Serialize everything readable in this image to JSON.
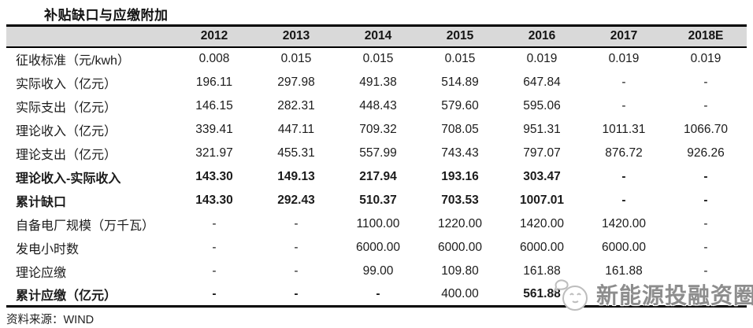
{
  "page": {
    "title": "补贴缺口与应缴附加",
    "source_note": "资料来源：WIND",
    "watermark": {
      "text": "新能源投融资圈",
      "icon": "face-with-speech-bubble-logo"
    }
  },
  "colors": {
    "header_bg": "#d9d9d9",
    "text": "#1b1b1b",
    "border": "#000000",
    "watermark_text": "#8d8d8d",
    "watermark_icon": "#bdbdbd"
  },
  "chart_data": {
    "type": "table",
    "title": "补贴缺口与应缴附加",
    "source": "WIND",
    "columns": [
      "2012",
      "2013",
      "2014",
      "2015",
      "2016",
      "2017",
      "2018E"
    ],
    "rows": [
      {
        "label": "征收标准（元/kwh）",
        "bold": false,
        "values": [
          "0.008",
          "0.015",
          "0.015",
          "0.015",
          "0.019",
          "0.019",
          "0.019"
        ]
      },
      {
        "label": "实际收入（亿元）",
        "bold": false,
        "values": [
          "196.11",
          "297.98",
          "491.38",
          "514.89",
          "647.84",
          "-",
          "-"
        ]
      },
      {
        "label": "实际支出（亿元）",
        "bold": false,
        "values": [
          "146.15",
          "282.31",
          "448.43",
          "579.60",
          "595.06",
          "-",
          "-"
        ]
      },
      {
        "label": "理论收入（亿元）",
        "bold": false,
        "values": [
          "339.41",
          "447.11",
          "709.32",
          "708.05",
          "951.31",
          "1011.31",
          "1066.70"
        ]
      },
      {
        "label": "理论支出（亿元）",
        "bold": false,
        "values": [
          "321.97",
          "455.31",
          "557.99",
          "743.43",
          "797.07",
          "876.72",
          "926.26"
        ]
      },
      {
        "label": "理论收入-实际收入",
        "bold": true,
        "values": [
          "143.30",
          "149.13",
          "217.94",
          "193.16",
          "303.47",
          "-",
          "-"
        ]
      },
      {
        "label": "累计缺口",
        "bold": true,
        "values": [
          "143.30",
          "292.43",
          "510.37",
          "703.53",
          "1007.01",
          "-",
          "-"
        ]
      },
      {
        "label": "自备电厂规模（万千瓦）",
        "bold": false,
        "values": [
          "-",
          "-",
          "1100.00",
          "1220.00",
          "1420.00",
          "1420.00",
          "-"
        ]
      },
      {
        "label": "发电小时数",
        "bold": false,
        "values": [
          "-",
          "-",
          "6000.00",
          "6000.00",
          "6000.00",
          "6000.00",
          "-"
        ]
      },
      {
        "label": "理论应缴",
        "bold": false,
        "values": [
          "-",
          "-",
          "99.00",
          "109.80",
          "161.88",
          "161.88",
          "-"
        ]
      },
      {
        "label": "累计应缴（亿元）",
        "bold": true,
        "regular_cells": [
          3
        ],
        "values": [
          "-",
          "-",
          "-",
          "400.00",
          "561.88",
          "",
          ""
        ]
      }
    ]
  }
}
